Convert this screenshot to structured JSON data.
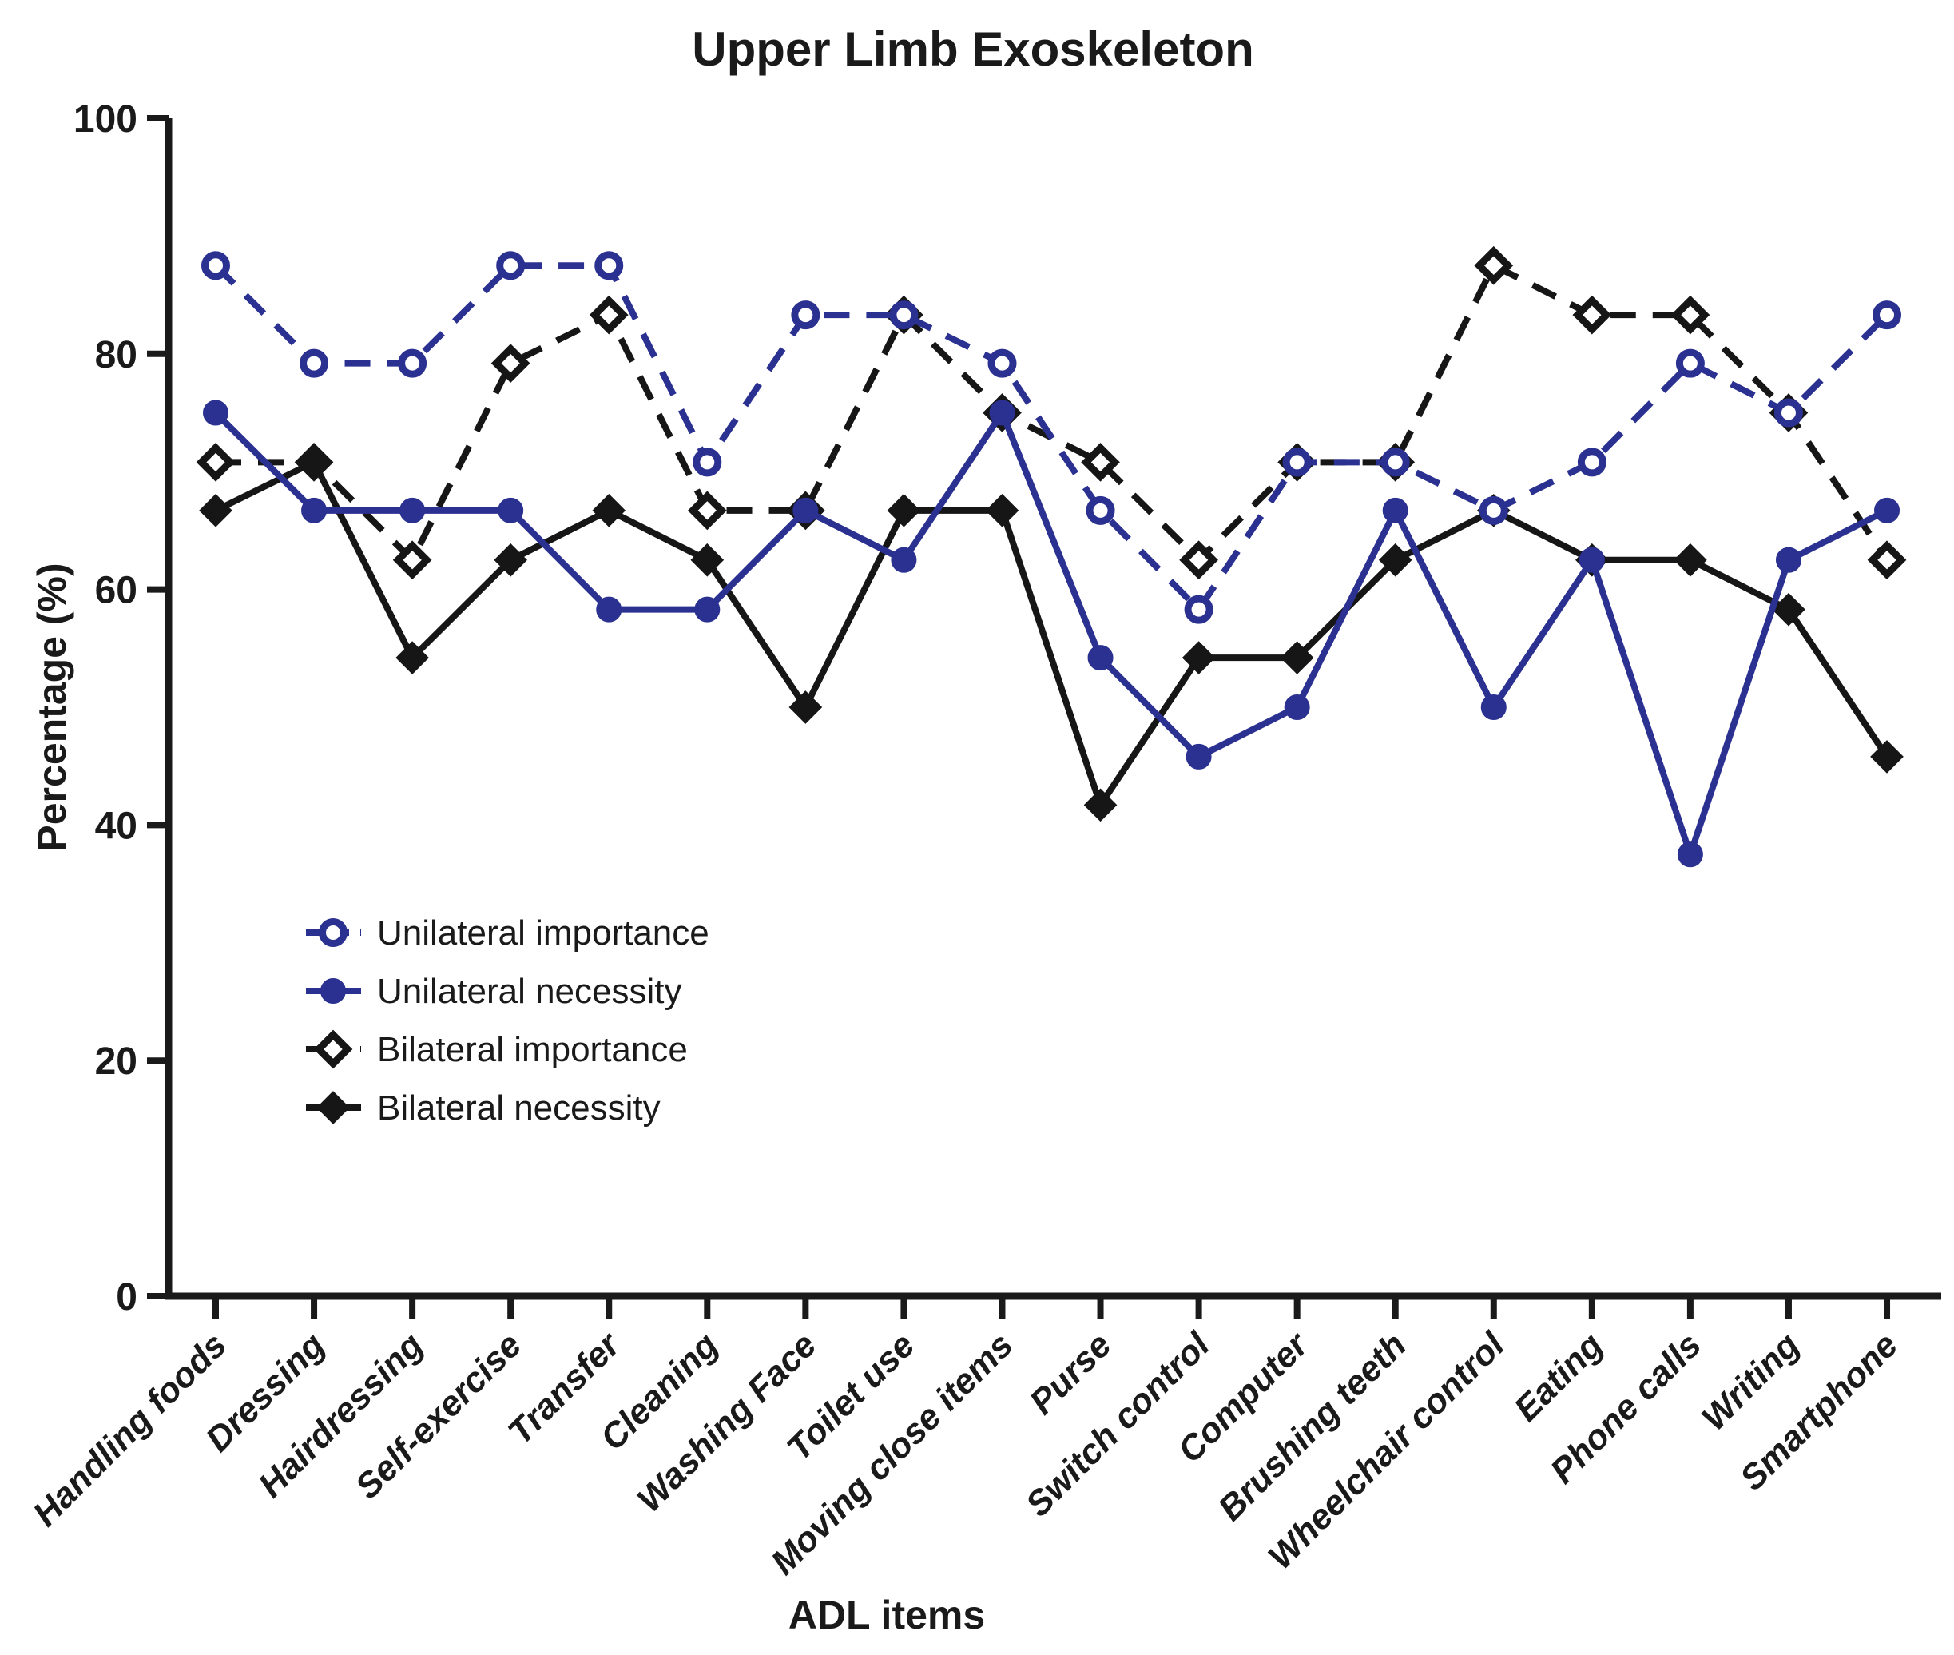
{
  "figure": {
    "title": "Upper Limb Exoskeleton"
  },
  "colors": {
    "unilateral_blue": "#2b3191",
    "bilateral_black": "#161616",
    "axis": "#1a1a1a",
    "background": "#ffffff"
  },
  "chart_data": {
    "type": "line",
    "title": "Upper Limb Exoskeleton",
    "xlabel": "ADL items",
    "ylabel": "Percentage (%)",
    "ylim": [
      0,
      100
    ],
    "yticks": [
      0,
      20,
      40,
      60,
      80,
      100
    ],
    "grid": false,
    "legend_position": "inside-middle-left",
    "categories": [
      "Handling foods",
      "Dressing",
      "Hairdressing",
      "Self-exercise",
      "Transfer",
      "Cleaning",
      "Washing Face",
      "Toilet use",
      "Moving close items",
      "Purse",
      "Switch control",
      "Computer",
      "Brushing teeth",
      "Wheelchair control",
      "Eating",
      "Phone calls",
      "Writing",
      "Smartphone"
    ],
    "series": [
      {
        "name": "Unilateral importance",
        "color": "#2b3191",
        "line": "dashed",
        "marker": "open-circle",
        "values": [
          87.5,
          79.2,
          79.2,
          87.5,
          87.5,
          70.8,
          83.3,
          83.3,
          79.2,
          66.7,
          58.3,
          70.8,
          70.8,
          66.7,
          70.8,
          79.2,
          75.0,
          83.3
        ]
      },
      {
        "name": "Unilateral necessity",
        "color": "#2b3191",
        "line": "solid",
        "marker": "filled-circle",
        "values": [
          75.0,
          66.7,
          66.7,
          66.7,
          58.3,
          58.3,
          66.7,
          62.5,
          75.0,
          54.2,
          45.8,
          50.0,
          66.7,
          50.0,
          62.5,
          37.5,
          62.5,
          66.7
        ]
      },
      {
        "name": "Bilateral importance",
        "color": "#161616",
        "line": "dashed",
        "marker": "open-diamond",
        "values": [
          70.8,
          70.8,
          62.5,
          79.2,
          83.3,
          66.7,
          66.7,
          83.3,
          75.0,
          70.8,
          62.5,
          70.8,
          70.8,
          87.5,
          83.3,
          83.3,
          75.0,
          62.5
        ]
      },
      {
        "name": "Bilateral necessity",
        "color": "#161616",
        "line": "solid",
        "marker": "filled-diamond",
        "values": [
          66.7,
          70.8,
          54.2,
          62.5,
          66.7,
          62.5,
          50.0,
          66.7,
          66.7,
          41.7,
          54.2,
          54.2,
          62.5,
          66.7,
          62.5,
          62.5,
          58.3,
          45.8
        ]
      }
    ]
  }
}
